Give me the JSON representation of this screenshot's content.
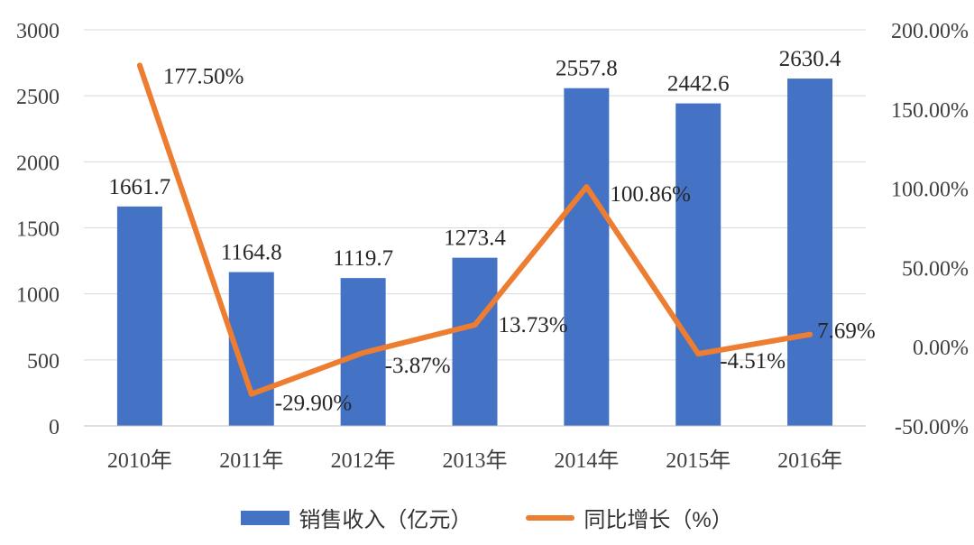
{
  "chart_data": {
    "type": "bar",
    "categories": [
      "2010年",
      "2011年",
      "2012年",
      "2013年",
      "2014年",
      "2015年",
      "2016年"
    ],
    "series": [
      {
        "name": "销售收入（亿元）",
        "type": "bar",
        "axis": "left",
        "color": "#4472C4",
        "values": [
          1661.7,
          1164.8,
          1119.7,
          1273.4,
          2557.8,
          2442.6,
          2630.4
        ],
        "labels": [
          "1661.7",
          "1164.8",
          "1119.7",
          "1273.4",
          "2557.8",
          "2442.6",
          "2630.4"
        ]
      },
      {
        "name": "同比增长（%）",
        "type": "line",
        "axis": "right",
        "color": "#ED7D31",
        "values": [
          177.5,
          -29.9,
          -3.87,
          13.73,
          100.86,
          -4.51,
          7.69
        ],
        "labels": [
          "177.50%",
          "-29.90%",
          "-3.87%",
          "13.73%",
          "100.86%",
          "-4.51%",
          "7.69%"
        ]
      }
    ],
    "y_left": {
      "lim": [
        0,
        3000
      ],
      "ticks": [
        "0",
        "500",
        "1000",
        "1500",
        "2000",
        "2500",
        "3000"
      ],
      "tick_values": [
        0,
        500,
        1000,
        1500,
        2000,
        2500,
        3000
      ]
    },
    "y_right": {
      "lim": [
        -50,
        200
      ],
      "ticks": [
        "-50.00%",
        "0.00%",
        "50.00%",
        "100.00%",
        "150.00%",
        "200.00%"
      ],
      "tick_values": [
        -50,
        0,
        50,
        100,
        150,
        200
      ]
    },
    "grid": true,
    "legend_position": "bottom"
  }
}
